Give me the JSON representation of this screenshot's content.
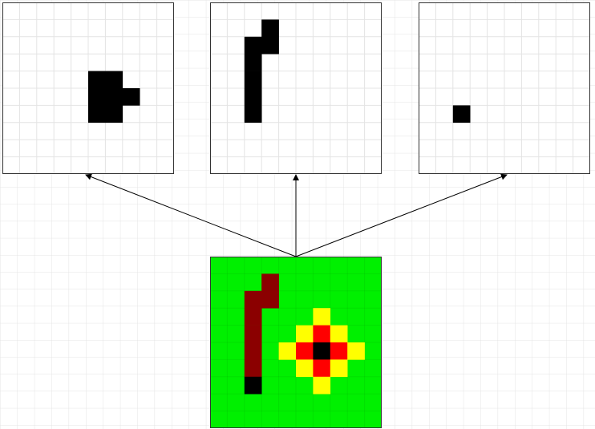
{
  "colors": {
    "background": "#ffffff",
    "grid_line": "#e4e4e4",
    "panel_border": "#333333",
    "arrow": "#000000",
    "wall": "#000000",
    "floor": "#00f000",
    "wall_marked": "#8b0000",
    "light_source": "#000000",
    "light_inner": "#ff0000",
    "light_outer": "#ffff00",
    "empty": "#ffffff"
  },
  "grid": {
    "cols": 10,
    "rows": 10
  },
  "panels": [
    {
      "name": "top-left-grid",
      "cells": [
        [
          5,
          4,
          "wall"
        ],
        [
          6,
          4,
          "wall"
        ],
        [
          5,
          5,
          "wall"
        ],
        [
          6,
          5,
          "wall"
        ],
        [
          7,
          5,
          "wall"
        ],
        [
          5,
          6,
          "wall"
        ],
        [
          6,
          6,
          "wall"
        ]
      ]
    },
    {
      "name": "top-middle-grid",
      "cells": [
        [
          3,
          1,
          "wall"
        ],
        [
          2,
          2,
          "wall"
        ],
        [
          3,
          2,
          "wall"
        ],
        [
          2,
          3,
          "wall"
        ],
        [
          2,
          4,
          "wall"
        ],
        [
          2,
          5,
          "wall"
        ],
        [
          2,
          6,
          "wall"
        ]
      ]
    },
    {
      "name": "top-right-grid",
      "cells": [
        [
          2,
          6,
          "wall"
        ]
      ]
    },
    {
      "name": "bottom-combined-grid",
      "fill": "floor",
      "cells": [
        [
          3,
          1,
          "wall_marked"
        ],
        [
          2,
          2,
          "wall_marked"
        ],
        [
          3,
          2,
          "wall_marked"
        ],
        [
          2,
          3,
          "wall_marked"
        ],
        [
          2,
          4,
          "wall_marked"
        ],
        [
          2,
          5,
          "wall_marked"
        ],
        [
          2,
          6,
          "wall_marked"
        ],
        [
          2,
          7,
          "light_source"
        ],
        [
          6,
          3,
          "light_outer"
        ],
        [
          5,
          4,
          "light_outer"
        ],
        [
          6,
          4,
          "light_inner"
        ],
        [
          7,
          4,
          "light_outer"
        ],
        [
          4,
          5,
          "light_outer"
        ],
        [
          5,
          5,
          "light_inner"
        ],
        [
          6,
          5,
          "light_source"
        ],
        [
          7,
          5,
          "light_inner"
        ],
        [
          8,
          5,
          "light_outer"
        ],
        [
          5,
          6,
          "light_outer"
        ],
        [
          6,
          6,
          "light_inner"
        ],
        [
          7,
          6,
          "light_outer"
        ],
        [
          6,
          7,
          "light_outer"
        ]
      ]
    }
  ],
  "arrows": [
    {
      "name": "arrow-to-top-left",
      "from": "bottom-combined-grid",
      "to": "top-left-grid"
    },
    {
      "name": "arrow-to-top-middle",
      "from": "bottom-combined-grid",
      "to": "top-middle-grid"
    },
    {
      "name": "arrow-to-top-right",
      "from": "bottom-combined-grid",
      "to": "top-right-grid"
    }
  ]
}
